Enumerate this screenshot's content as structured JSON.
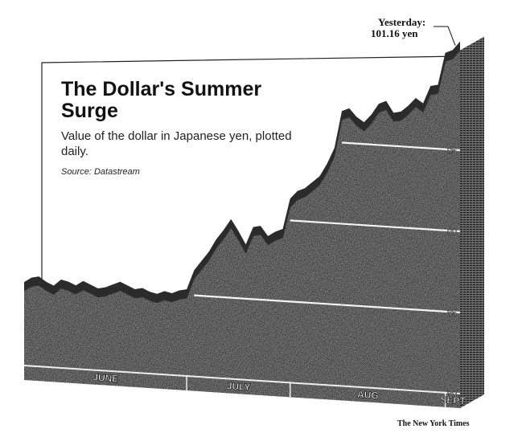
{
  "chart_data": {
    "type": "area",
    "title": "The Dollar's Summer Surge",
    "subtitle": "Value of the dollar in Japanese yen, plotted daily.",
    "source": "Source: Datastream",
    "credit": "The New York Times",
    "annotation": {
      "label": "Yesterday:",
      "value": "101.16 yen"
    },
    "y_ticks": [
      80,
      85,
      90,
      95
    ],
    "y_tick_labels": [
      "80",
      "85",
      "90",
      "95"
    ],
    "ylim": [
      80,
      102
    ],
    "months": [
      "JUNE",
      "JULY",
      "AUG",
      "SEPT"
    ],
    "series": [
      {
        "values": [
          84.6,
          84.9,
          85.0,
          84.7,
          84.5,
          84.9,
          84.8,
          84.6,
          84.9,
          84.7,
          84.5,
          84.6,
          84.8,
          85.0,
          84.8,
          84.6,
          84.7,
          84.5,
          84.4,
          84.6,
          84.5,
          84.7,
          84.8,
          86.0,
          86.6,
          87.2,
          88.0,
          88.6,
          89.3,
          88.6,
          87.8,
          88.9,
          89.0,
          88.4,
          88.7,
          88.9,
          90.8,
          91.3,
          91.5,
          91.9,
          92.3,
          93.1,
          94.1,
          96.4,
          96.6,
          96.1,
          95.8,
          96.3,
          97.0,
          97.2,
          96.5,
          96.6,
          97.0,
          97.5,
          97.2,
          98.3,
          98.4,
          100.4,
          100.6,
          101.16
        ]
      }
    ]
  }
}
